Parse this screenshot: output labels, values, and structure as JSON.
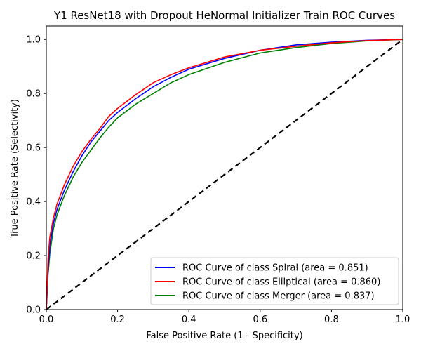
{
  "chart_data": {
    "type": "line",
    "title": "Y1 ResNet18 with Dropout HeNormal Initializer Train ROC Curves",
    "xlabel": "False Positive Rate (1 - Specificity)",
    "ylabel": "True Positive Rate (Selectivity)",
    "xlim": [
      0.0,
      1.0
    ],
    "ylim": [
      0.0,
      1.05
    ],
    "xticks": [
      0.0,
      0.2,
      0.4,
      0.6,
      0.8,
      1.0
    ],
    "yticks": [
      0.0,
      0.2,
      0.4,
      0.6,
      0.8,
      1.0
    ],
    "xtick_labels": [
      "0.0",
      "0.2",
      "0.4",
      "0.6",
      "0.8",
      "1.0"
    ],
    "ytick_labels": [
      "0.0",
      "0.2",
      "0.4",
      "0.6",
      "0.8",
      "1.0"
    ],
    "grid": false,
    "legend_position": "lower-right",
    "diagonal": {
      "x": [
        0,
        1
      ],
      "y": [
        0,
        1
      ],
      "color": "#000000",
      "style": "dashed"
    },
    "series": [
      {
        "name": "ROC Curve of class Spiral (area = 0.851)",
        "color": "#0000ff",
        "x": [
          0,
          0.005,
          0.01,
          0.02,
          0.03,
          0.05,
          0.075,
          0.1,
          0.125,
          0.15,
          0.175,
          0.2,
          0.25,
          0.3,
          0.35,
          0.4,
          0.5,
          0.6,
          0.7,
          0.8,
          0.9,
          1.0
        ],
        "y": [
          0,
          0.15,
          0.24,
          0.32,
          0.37,
          0.44,
          0.51,
          0.57,
          0.62,
          0.66,
          0.7,
          0.73,
          0.78,
          0.825,
          0.86,
          0.89,
          0.93,
          0.96,
          0.98,
          0.99,
          0.997,
          1.0
        ]
      },
      {
        "name": "ROC Curve of class Elliptical (area = 0.860)",
        "color": "#ff0000",
        "x": [
          0,
          0.005,
          0.01,
          0.02,
          0.03,
          0.05,
          0.075,
          0.1,
          0.125,
          0.15,
          0.175,
          0.2,
          0.25,
          0.3,
          0.35,
          0.4,
          0.5,
          0.6,
          0.7,
          0.8,
          0.9,
          1.0
        ],
        "y": [
          0,
          0.19,
          0.27,
          0.34,
          0.39,
          0.46,
          0.53,
          0.585,
          0.63,
          0.67,
          0.715,
          0.745,
          0.795,
          0.84,
          0.87,
          0.895,
          0.935,
          0.96,
          0.975,
          0.988,
          0.996,
          1.0
        ]
      },
      {
        "name": "ROC Curve of class Merger (area = 0.837)",
        "color": "#008000",
        "x": [
          0,
          0.005,
          0.01,
          0.02,
          0.03,
          0.05,
          0.075,
          0.1,
          0.125,
          0.15,
          0.175,
          0.2,
          0.25,
          0.3,
          0.35,
          0.4,
          0.5,
          0.6,
          0.7,
          0.8,
          0.9,
          1.0
        ],
        "y": [
          0,
          0.13,
          0.21,
          0.3,
          0.35,
          0.42,
          0.49,
          0.545,
          0.59,
          0.635,
          0.675,
          0.71,
          0.76,
          0.8,
          0.84,
          0.87,
          0.915,
          0.95,
          0.97,
          0.985,
          0.995,
          1.0
        ]
      }
    ]
  }
}
